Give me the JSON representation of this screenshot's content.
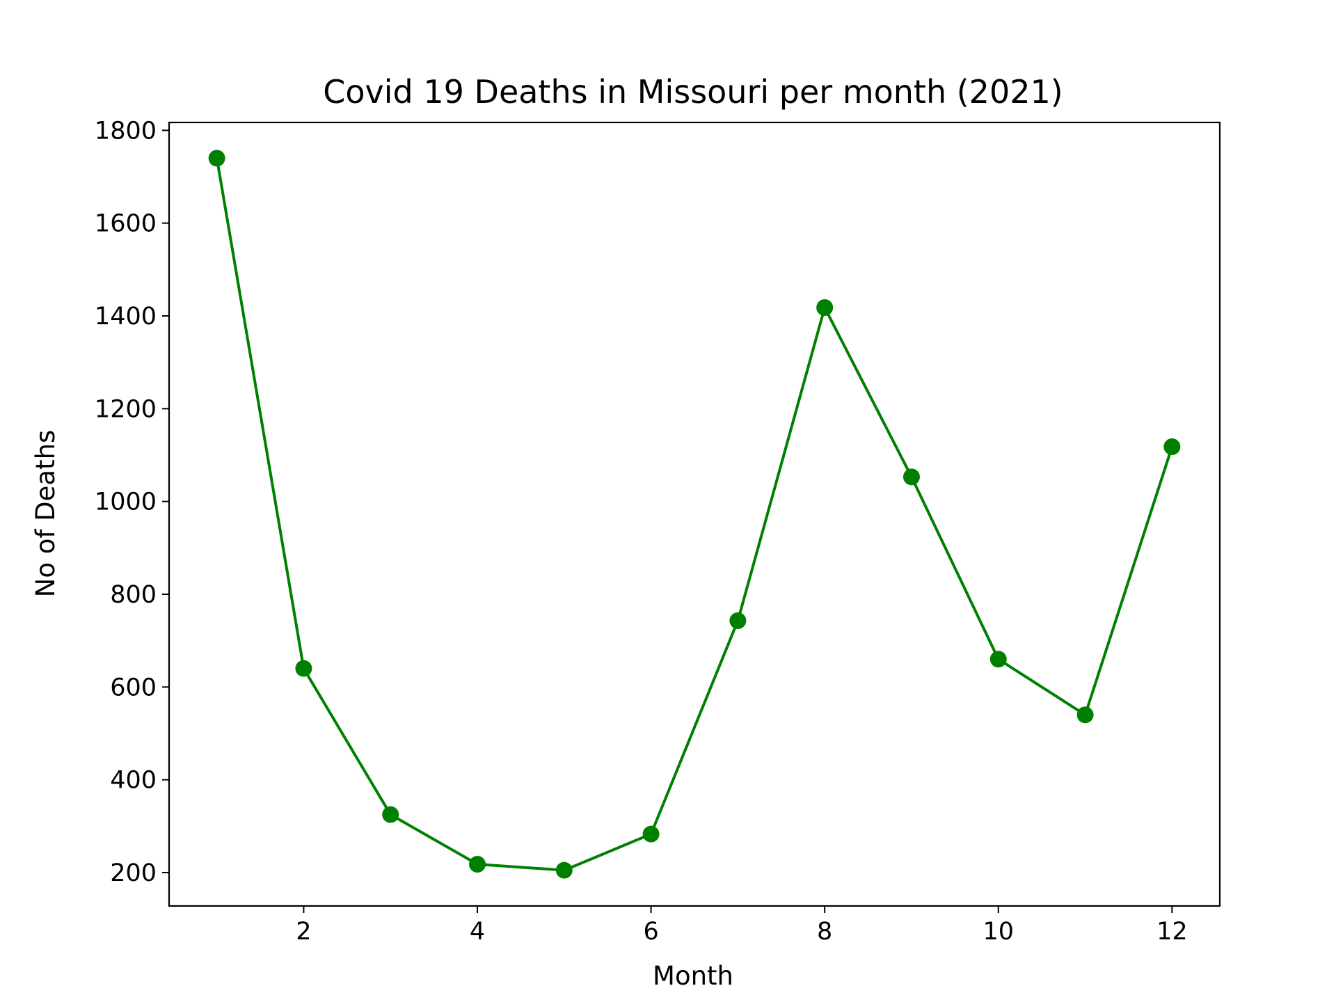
{
  "chart_data": {
    "type": "line",
    "title": "Covid 19 Deaths in Missouri per month (2021)",
    "xlabel": "Month",
    "ylabel": "No of Deaths",
    "x": [
      1,
      2,
      3,
      4,
      5,
      6,
      7,
      8,
      9,
      10,
      11,
      12
    ],
    "series": [
      {
        "values": [
          1740,
          640,
          325,
          218,
          205,
          283,
          743,
          1418,
          1053,
          660,
          540,
          1118
        ]
      }
    ],
    "xlim": [
      0.45,
      12.55
    ],
    "ylim": [
      128,
      1817
    ],
    "xticks": [
      2,
      4,
      6,
      8,
      10,
      12
    ],
    "xtick_labels": [
      "2",
      "4",
      "6",
      "8",
      "10",
      "12"
    ],
    "yticks": [
      200,
      400,
      600,
      800,
      1000,
      1200,
      1400,
      1600,
      1800
    ],
    "ytick_labels": [
      "200",
      "400",
      "600",
      "800",
      "1000",
      "1200",
      "1400",
      "1600",
      "1800"
    ],
    "grid": false,
    "legend": "none",
    "colors": {
      "line": "#008000",
      "marker": "#008000",
      "axes": "#000000"
    },
    "marker": "circle"
  }
}
